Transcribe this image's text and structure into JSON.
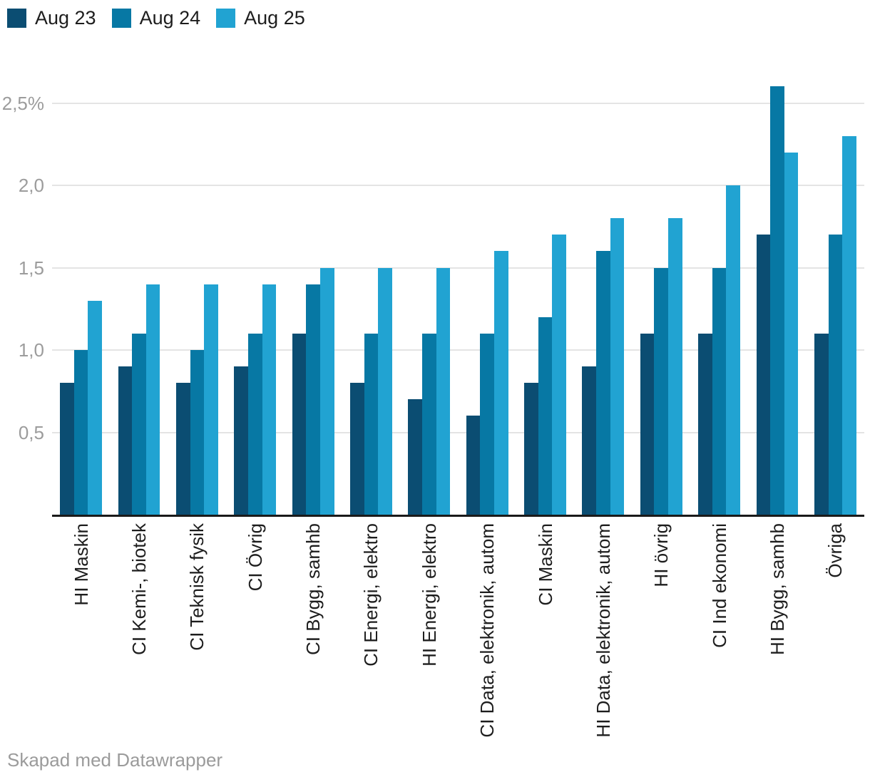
{
  "legend": {
    "items": [
      {
        "label": "Aug 23",
        "color": "#0b4d72"
      },
      {
        "label": "Aug 24",
        "color": "#0778a4"
      },
      {
        "label": "Aug 25",
        "color": "#21a3d2"
      }
    ]
  },
  "chart_data": {
    "type": "bar",
    "title": "",
    "xlabel": "",
    "ylabel": "",
    "value_unit": "%",
    "decimal_separator": ",",
    "grid": "horizontal",
    "legend_position": "top-left",
    "ylim": [
      0,
      2.7
    ],
    "categories": [
      "HI Maskin",
      "CI Kemi-, biotek",
      "CI Teknisk fysik",
      "CI Övrig",
      "CI Bygg, samhb",
      "CI Energi, elektro",
      "HI Energi, elektro",
      "CI Data, elektronik, autom",
      "CI Maskin",
      "HI Data, elektronik, autom",
      "HI övrig",
      "CI Ind ekonomi",
      "HI Bygg, samhb",
      "Övriga"
    ],
    "series": [
      {
        "name": "Aug 23",
        "color": "#0b4d72",
        "values": [
          0.8,
          0.9,
          0.8,
          0.9,
          1.1,
          0.8,
          0.7,
          0.6,
          0.8,
          0.9,
          1.1,
          1.1,
          1.7,
          1.1
        ]
      },
      {
        "name": "Aug 24",
        "color": "#0778a4",
        "values": [
          1.0,
          1.1,
          1.0,
          1.1,
          1.4,
          1.1,
          1.1,
          1.1,
          1.2,
          1.6,
          1.5,
          1.5,
          2.6,
          1.7
        ]
      },
      {
        "name": "Aug 25",
        "color": "#21a3d2",
        "values": [
          1.3,
          1.4,
          1.4,
          1.4,
          1.5,
          1.5,
          1.5,
          1.6,
          1.7,
          1.8,
          1.8,
          2.0,
          2.2,
          2.3
        ]
      }
    ],
    "yticks": [
      {
        "value": 0.5,
        "label": "0,5"
      },
      {
        "value": 1.0,
        "label": "1,0"
      },
      {
        "value": 1.5,
        "label": "1,5"
      },
      {
        "value": 2.0,
        "label": "2,0"
      },
      {
        "value": 2.5,
        "label": "2,5%"
      }
    ]
  },
  "footer": {
    "credit": "Skapad med Datawrapper"
  },
  "colors": {
    "background": "#ffffff",
    "axis_line": "#1a1a1a",
    "gridline": "#e4e4e4",
    "tick_label": "#9c9c9c",
    "category_label": "#1d1d1d",
    "footer_text": "#9b9b9b"
  }
}
